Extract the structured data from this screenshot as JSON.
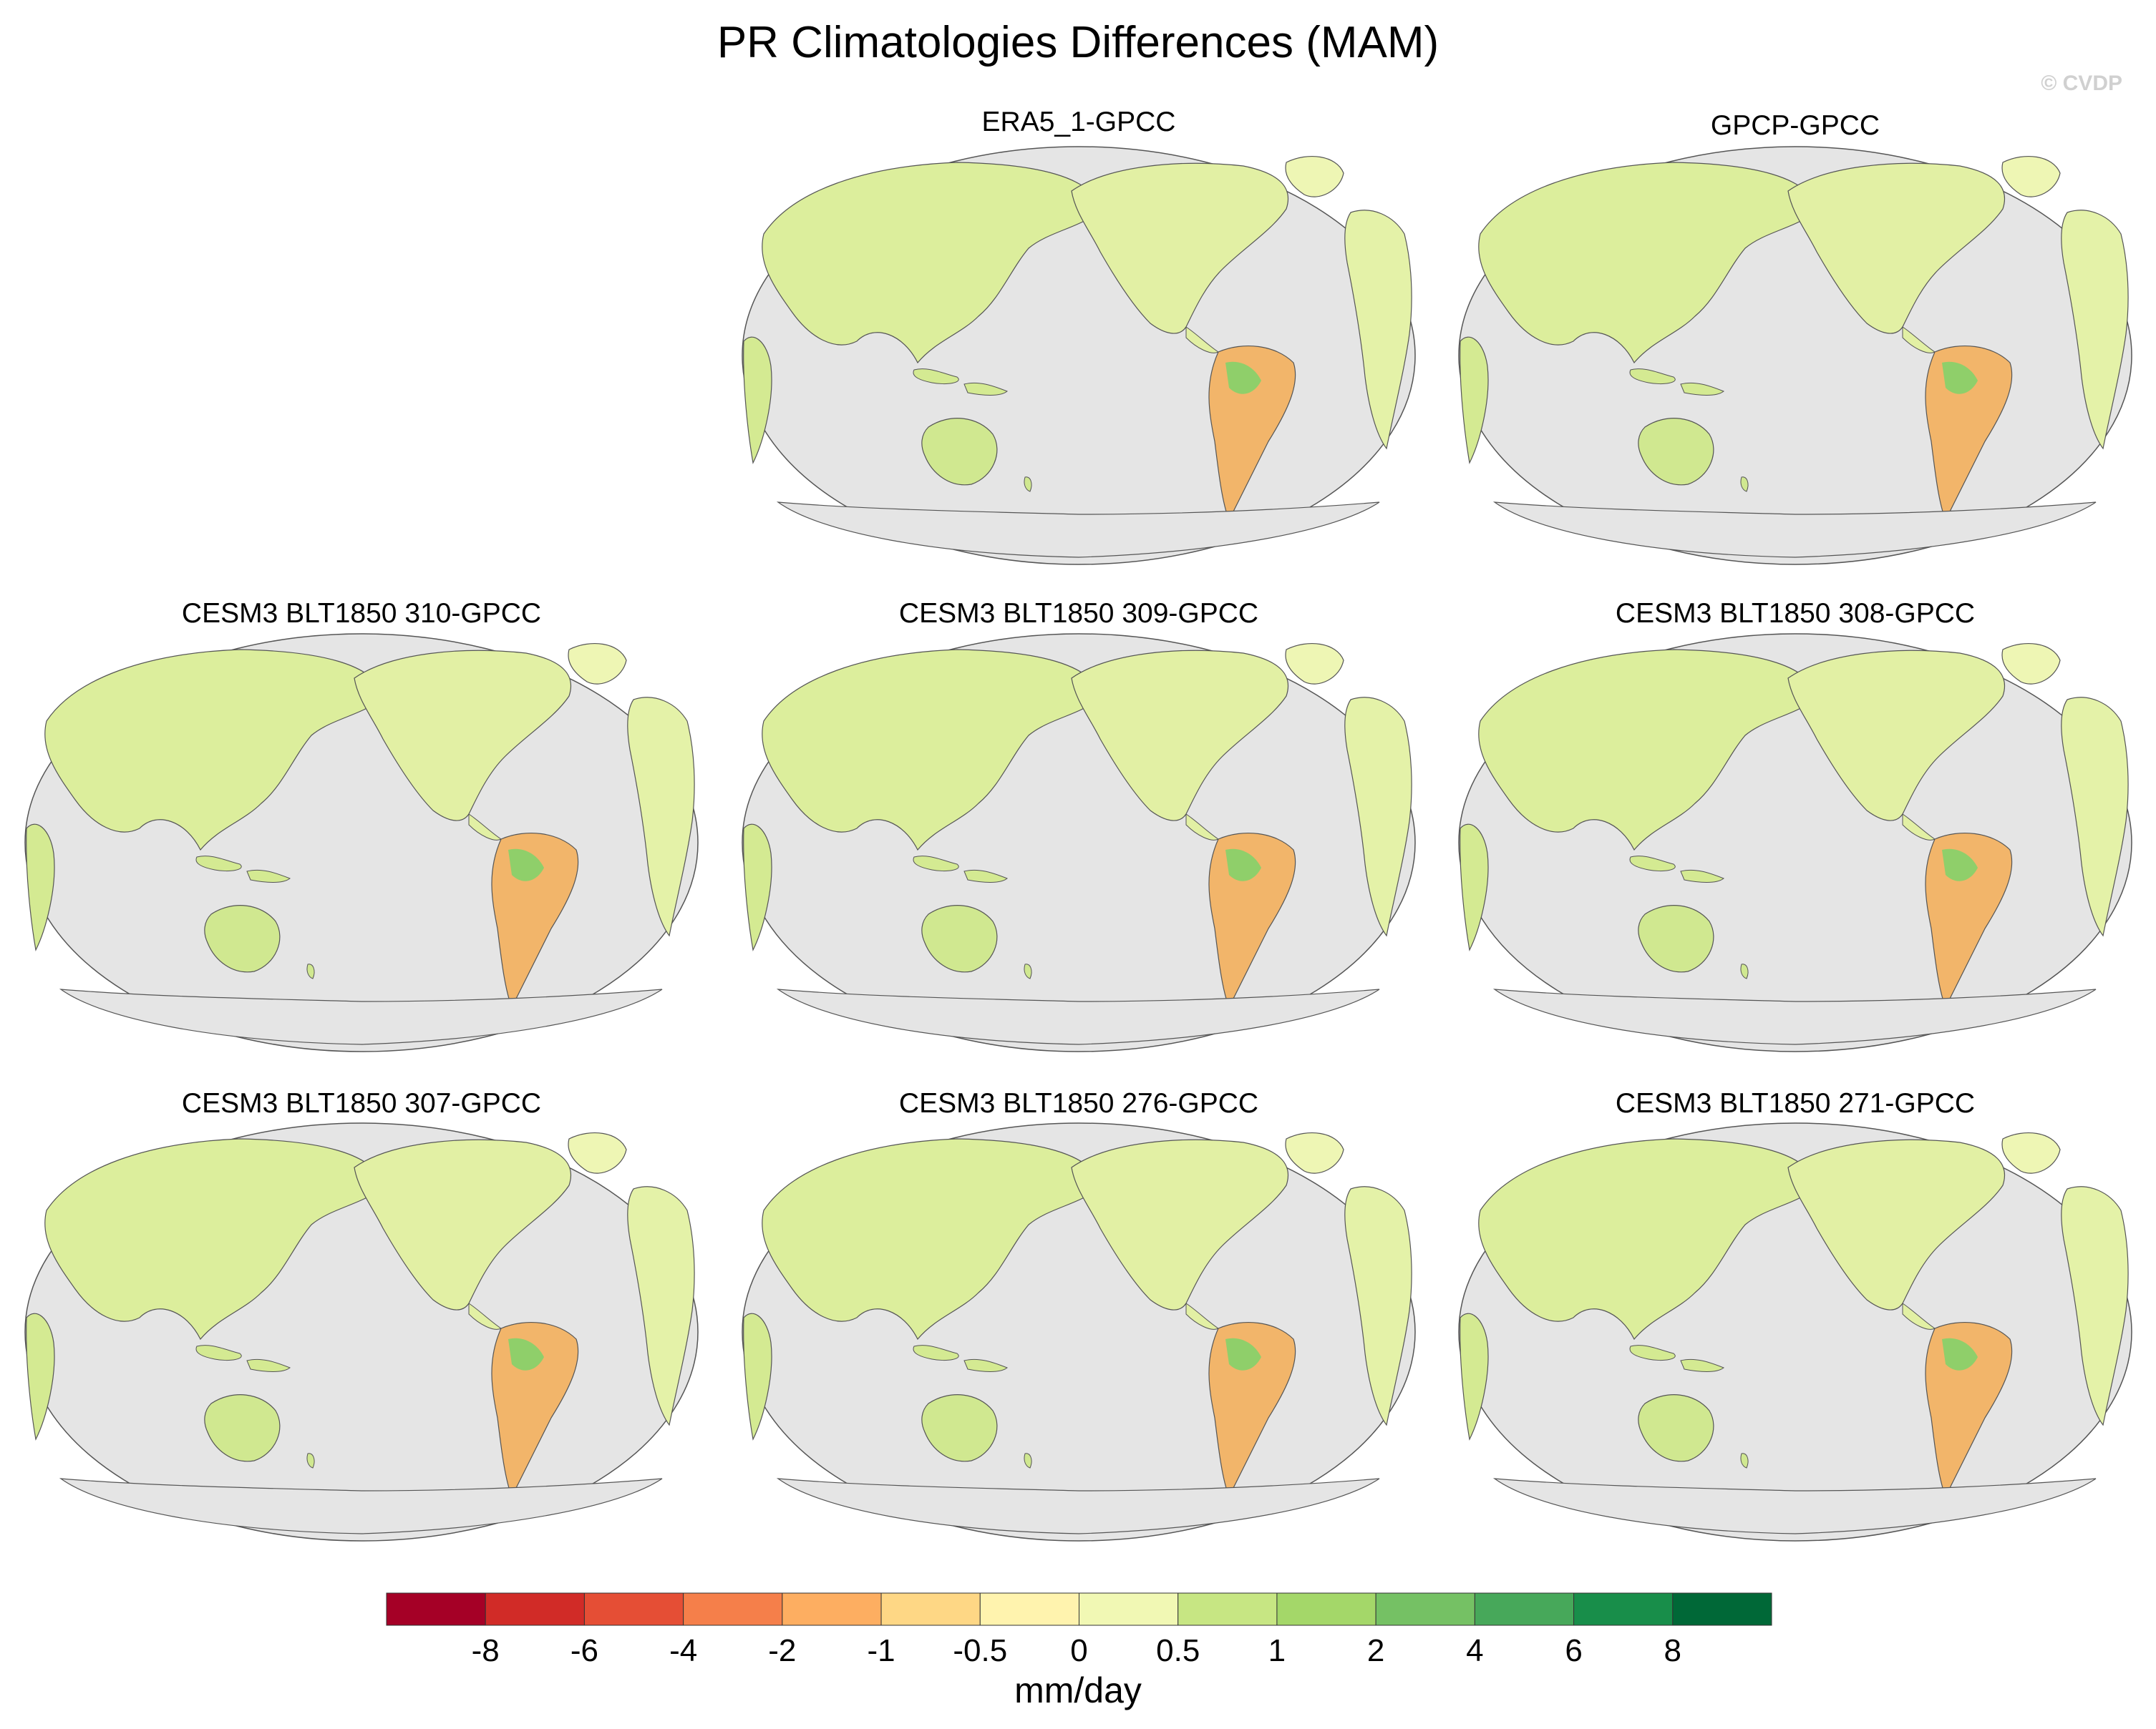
{
  "figure": {
    "title": "PR Climatologies Differences (MAM)",
    "watermark": "© CVDP"
  },
  "panels": [
    {
      "id": "era5",
      "title": "ERA5_1-GPCC"
    },
    {
      "id": "gpcp",
      "title": "GPCP-GPCC"
    },
    {
      "id": "r310",
      "title": "CESM3 BLT1850 310-GPCC"
    },
    {
      "id": "r309",
      "title": "CESM3 BLT1850 309-GPCC"
    },
    {
      "id": "r308",
      "title": "CESM3 BLT1850 308-GPCC"
    },
    {
      "id": "r307",
      "title": "CESM3 BLT1850 307-GPCC"
    },
    {
      "id": "r276",
      "title": "CESM3 BLT1850 276-GPCC"
    },
    {
      "id": "r271",
      "title": "CESM3 BLT1850 271-GPCC"
    }
  ],
  "colorbar": {
    "units": "mm/day",
    "levels": [
      "-8",
      "-6",
      "-4",
      "-2",
      "-1",
      "-0.5",
      "0",
      "0.5",
      "1",
      "2",
      "4",
      "6",
      "8"
    ],
    "colors": [
      "#a50026",
      "#d12b27",
      "#e54e35",
      "#f57f4a",
      "#fdae61",
      "#fed785",
      "#fff3ae",
      "#f1f8b4",
      "#c7e683",
      "#a4d769",
      "#75c164",
      "#47a85a",
      "#188e4a",
      "#006837"
    ]
  },
  "map_style": {
    "ocean_color": "#e5e5e5",
    "coast_color": "#555555"
  }
}
